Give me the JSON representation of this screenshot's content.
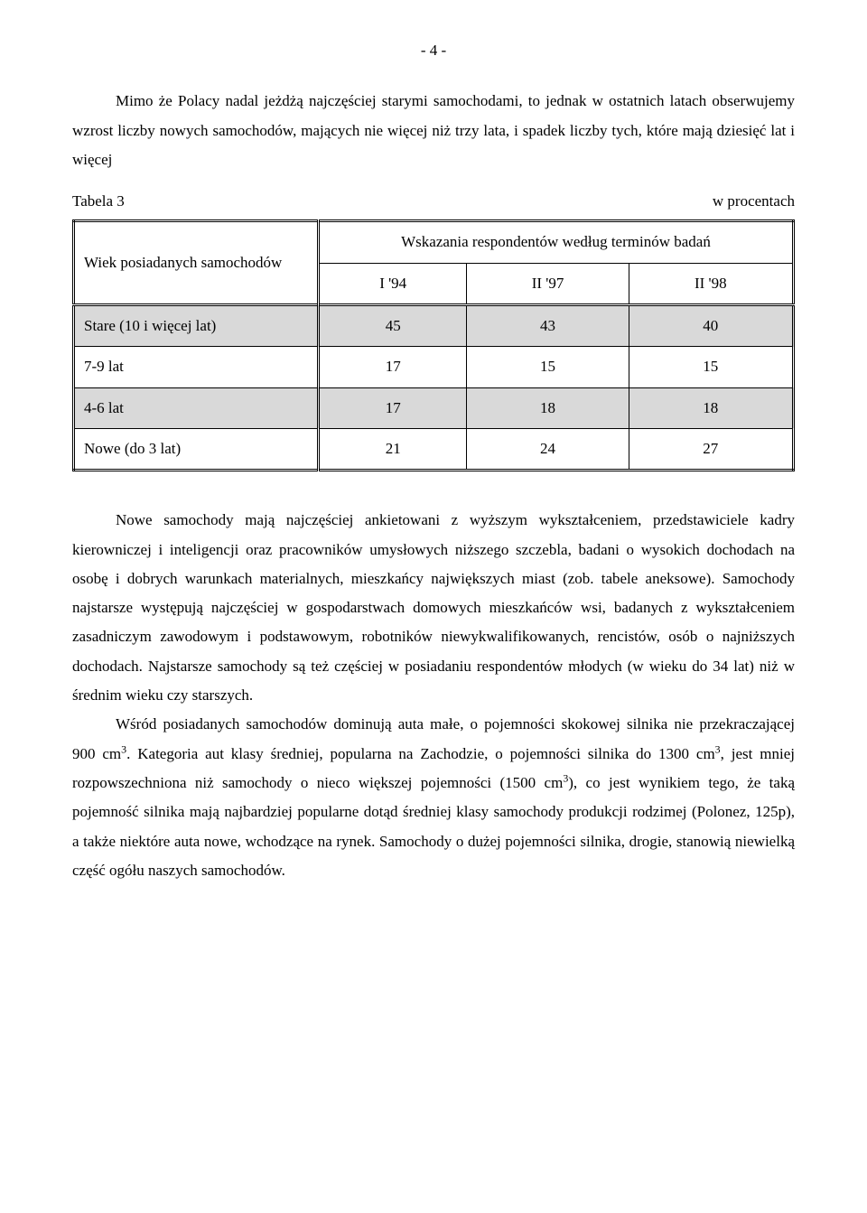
{
  "page_number": "- 4 -",
  "intro_para": "Mimo że Polacy nadal jeżdżą najczęściej starymi samochodami, to jednak w ostatnich latach obserwujemy wzrost liczby nowych samochodów, mających nie więcej niż trzy lata, i spadek liczby tych, które mają dziesięć lat i więcej",
  "table": {
    "label_left": "Tabela 3",
    "label_right": "w procentach",
    "row_header": "Wiek posiadanych samochodów",
    "col_header_span": "Wskazania respondentów według terminów badań",
    "periods": [
      "I '94",
      "II '97",
      "II '98"
    ],
    "rows": [
      {
        "label": "Stare (10 i więcej lat)",
        "vals": [
          "45",
          "43",
          "40"
        ],
        "shaded": true
      },
      {
        "label": "7-9 lat",
        "vals": [
          "17",
          "15",
          "15"
        ],
        "shaded": false
      },
      {
        "label": "4-6 lat",
        "vals": [
          "17",
          "18",
          "18"
        ],
        "shaded": true
      },
      {
        "label": "Nowe (do 3 lat)",
        "vals": [
          "21",
          "24",
          "27"
        ],
        "shaded": false
      }
    ]
  },
  "para2_a": "Nowe samochody mają najczęściej ankietowani z wyższym wykształceniem, przedstawiciele kadry kierowniczej i inteligencji oraz pracowników umysłowych niższego szczebla, badani o wysokich dochodach na osobę i dobrych warunkach materialnych, mieszkańcy największych miast (zob. tabele aneksowe). Samochody najstarsze występują najczęściej w gospodarstwach domowych mieszkańców wsi, badanych z wykształceniem zasadniczym zawodowym i podstawowym, robotników niewykwalifikowanych, rencistów, osób o najniższych dochodach. Najstarsze samochody są też częściej w posiadaniu respondentów młodych (w wieku do 34 lat) niż w średnim wieku czy starszych.",
  "para3_a": "Wśród posiadanych samochodów dominują auta małe, o pojemności skokowej silnika nie przekraczającej 900 cm",
  "para3_b": ". Kategoria aut klasy średniej, popularna na Zachodzie, o pojemności silnika do 1300 cm",
  "para3_c": ", jest mniej rozpowszechniona niż samochody o nieco większej pojemności (1500 cm",
  "para3_d": "), co jest wynikiem tego, że taką pojemność silnika mają najbardziej popularne dotąd średniej klasy samochody produkcji rodzimej (Polonez, 125p), a także niektóre auta nowe, wchodzące na rynek. Samochody o dużej pojemności silnika, drogie, stanowią niewielką część ogółu naszych samochodów.",
  "sup3": "3"
}
